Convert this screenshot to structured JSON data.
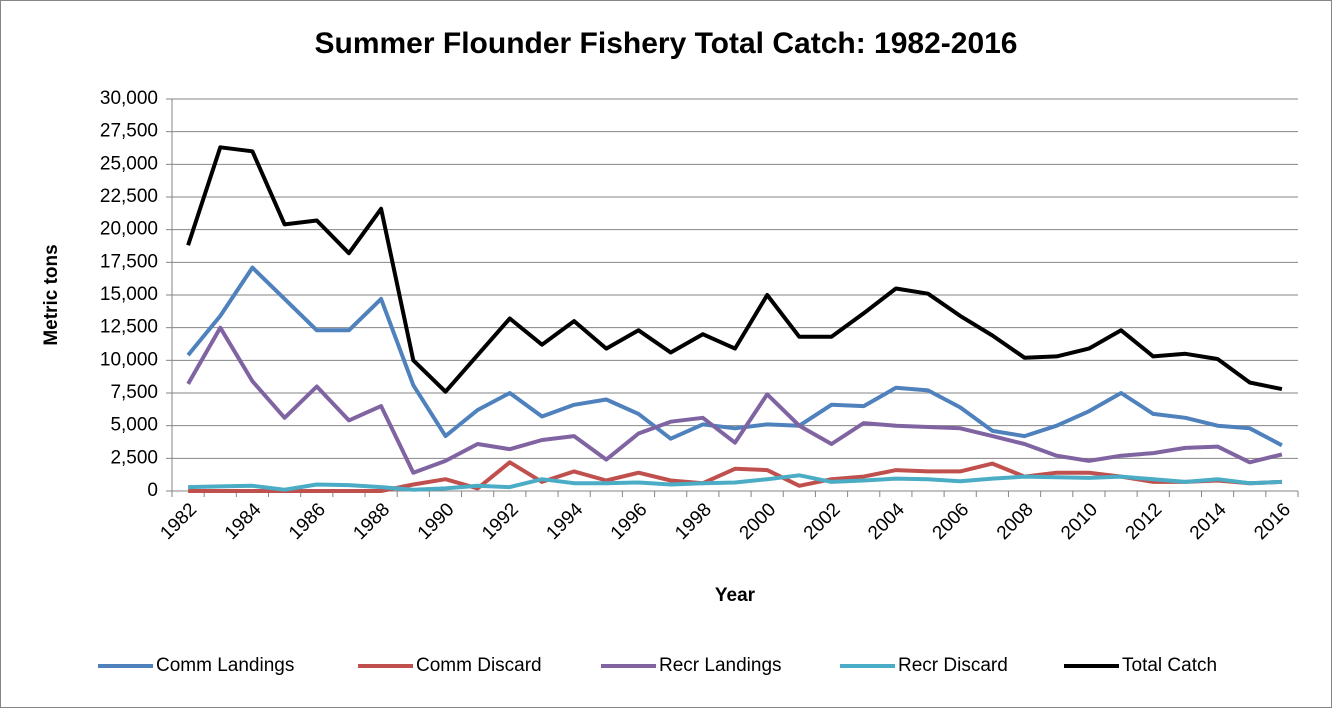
{
  "chart_data": {
    "type": "line",
    "title": "Summer Flounder Fishery Total Catch: 1982-2016",
    "x_label": "Year",
    "y_label": "Metric tons",
    "categories": [
      "1982",
      null,
      "1984",
      null,
      "1986",
      null,
      "1988",
      null,
      "1990",
      null,
      "1992",
      null,
      "1994",
      null,
      "1996",
      null,
      "1998",
      null,
      "2000",
      null,
      "2002",
      null,
      "2004",
      null,
      "2006",
      null,
      "2008",
      null,
      "2010",
      null,
      "2012",
      null,
      "2014",
      null,
      "2016"
    ],
    "ylim": [
      0,
      30000
    ],
    "yticks": [
      0,
      {
        "value": 2500,
        "label": "2,500"
      },
      {
        "value": 5000,
        "label": "5,000"
      },
      {
        "value": 7500,
        "label": "7,500"
      },
      {
        "value": 10000,
        "label": "10,000"
      },
      {
        "value": 12500,
        "label": "12,500"
      },
      {
        "value": 15000,
        "label": "15,000"
      },
      {
        "value": 17500,
        "label": "17,500"
      },
      {
        "value": 20000,
        "label": "20,000"
      },
      {
        "value": 22500,
        "label": "22,500"
      },
      {
        "value": 25000,
        "label": "25,000"
      },
      {
        "value": 27500,
        "label": "27,500"
      },
      {
        "value": 30000,
        "label": "30,000"
      }
    ],
    "grid": true,
    "legend": "bottom",
    "series": [
      {
        "name": "Comm Landings",
        "color": "#4f81bd",
        "values": [
          10400,
          13400,
          17100,
          14700,
          12300,
          12300,
          14700,
          8100,
          4200,
          6200,
          7500,
          5700,
          6600,
          7000,
          5900,
          4000,
          5100,
          4800,
          5100,
          5000,
          6600,
          6500,
          7900,
          7700,
          6400,
          4600,
          4200,
          5000,
          6100,
          7500,
          5900,
          5600,
          5000,
          4800,
          3500
        ]
      },
      {
        "name": "Comm Discard",
        "color": "#c0504d",
        "values": [
          0,
          0,
          0,
          0,
          0,
          0,
          0,
          500,
          900,
          200,
          2200,
          700,
          1500,
          800,
          1400,
          800,
          600,
          1700,
          1600,
          400,
          900,
          1100,
          1600,
          1500,
          1500,
          2100,
          1100,
          1400,
          1400,
          1100,
          700,
          700,
          800,
          600,
          700
        ]
      },
      {
        "name": "Recr Landings",
        "color": "#8064a2",
        "values": [
          8200,
          12500,
          8400,
          5600,
          8000,
          5400,
          6500,
          1400,
          2300,
          3600,
          3200,
          3900,
          4200,
          2400,
          4400,
          5300,
          5600,
          3700,
          7400,
          5000,
          3600,
          5200,
          5000,
          4900,
          4800,
          4200,
          3600,
          2700,
          2300,
          2700,
          2900,
          3300,
          3400,
          2200,
          2800
        ]
      },
      {
        "name": "Recr Discard",
        "color": "#4bacc6",
        "values": [
          300,
          350,
          400,
          100,
          500,
          450,
          300,
          100,
          200,
          400,
          300,
          900,
          600,
          600,
          650,
          500,
          600,
          650,
          900,
          1200,
          700,
          800,
          950,
          900,
          750,
          950,
          1100,
          1050,
          1000,
          1100,
          900,
          700,
          900,
          600,
          700
        ]
      },
      {
        "name": "Total Catch",
        "color": "#000000",
        "values": [
          18800,
          26300,
          26000,
          20400,
          20700,
          18200,
          21600,
          10000,
          7600,
          10400,
          13200,
          11200,
          13000,
          10900,
          12300,
          10600,
          12000,
          10900,
          15000,
          11800,
          11800,
          13600,
          15500,
          15100,
          13400,
          11900,
          10200,
          10300,
          10900,
          12300,
          10300,
          10500,
          10100,
          8300,
          7800
        ]
      }
    ]
  }
}
